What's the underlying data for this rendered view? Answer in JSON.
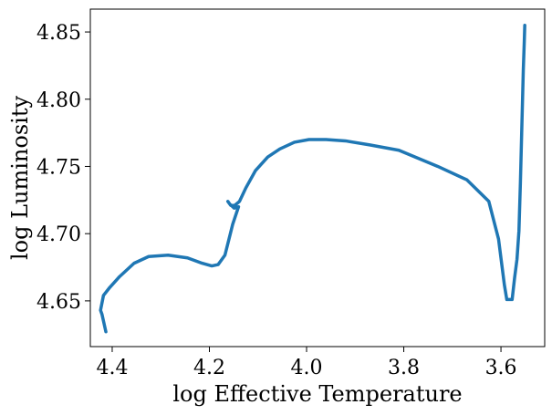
{
  "chart_data": {
    "type": "line",
    "title": "",
    "xlabel": "log Effective Temperature",
    "ylabel": "log Luminosity",
    "x_inverted": true,
    "xlim": [
      4.445,
      3.51
    ],
    "ylim": [
      4.616,
      4.867
    ],
    "x_ticks": [
      4.4,
      4.2,
      4.0,
      3.8,
      3.6
    ],
    "x_tick_labels": [
      "4.4",
      "4.2",
      "4.0",
      "3.8",
      "3.6"
    ],
    "y_ticks": [
      4.65,
      4.7,
      4.75,
      4.8,
      4.85
    ],
    "y_tick_labels": [
      "4.65",
      "4.70",
      "4.75",
      "4.80",
      "4.85"
    ],
    "grid": false,
    "legend": false,
    "line_color": "#1f77b4",
    "series": [
      {
        "x": [
          4.413,
          4.421,
          4.424,
          4.418,
          4.405,
          4.385,
          4.355,
          4.325,
          4.285,
          4.245,
          4.215,
          4.195,
          4.182,
          4.168,
          4.152,
          4.14,
          4.149,
          4.158,
          4.162,
          4.156,
          4.148,
          4.138,
          4.125,
          4.105,
          4.08,
          4.055,
          4.025,
          3.995,
          3.96,
          3.92,
          3.87,
          3.81,
          3.73,
          3.67,
          3.625,
          3.605,
          3.593,
          3.588,
          3.583,
          3.577,
          3.572,
          3.567,
          3.563,
          3.56,
          3.557,
          3.554,
          3.552,
          3.551
        ],
        "y": [
          4.627,
          4.64,
          4.643,
          4.654,
          4.66,
          4.668,
          4.678,
          4.683,
          4.684,
          4.682,
          4.678,
          4.676,
          4.677,
          4.684,
          4.707,
          4.72,
          4.719,
          4.722,
          4.724,
          4.721,
          4.721,
          4.724,
          4.734,
          4.747,
          4.757,
          4.763,
          4.768,
          4.77,
          4.77,
          4.769,
          4.766,
          4.762,
          4.75,
          4.74,
          4.724,
          4.696,
          4.662,
          4.651,
          4.651,
          4.651,
          4.667,
          4.681,
          4.702,
          4.738,
          4.78,
          4.822,
          4.843,
          4.855
        ]
      }
    ]
  }
}
